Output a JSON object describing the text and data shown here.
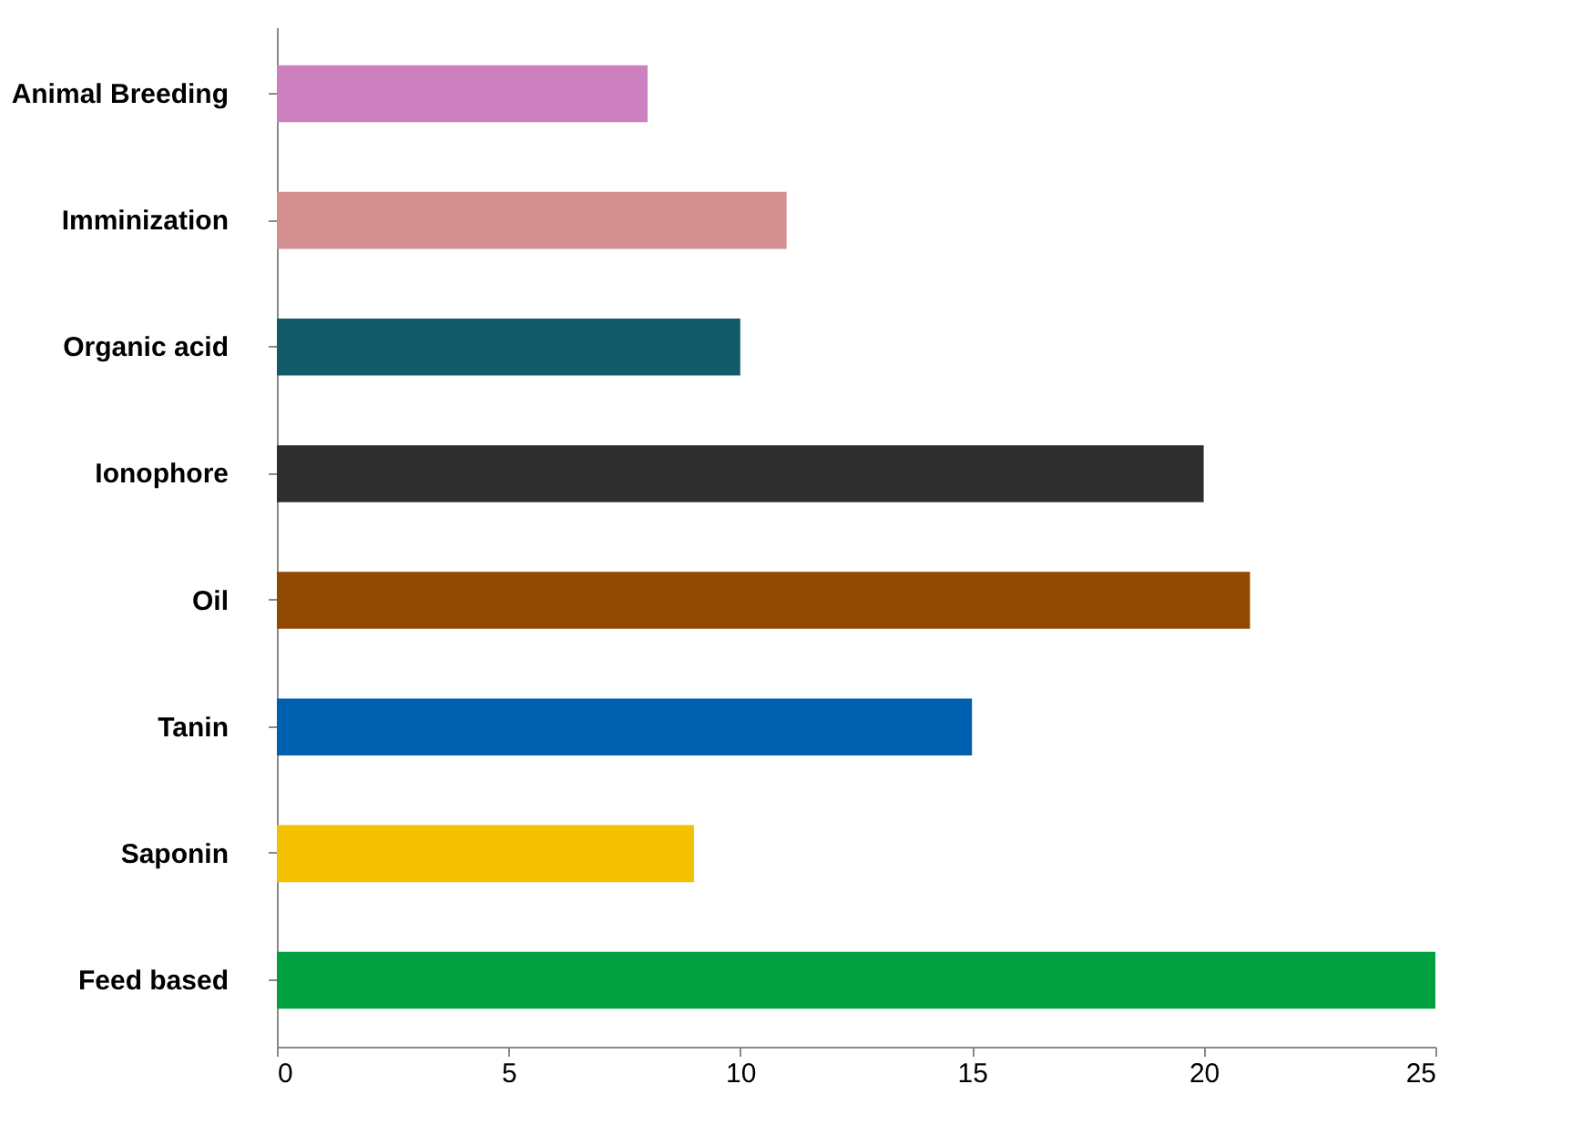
{
  "chart_data": {
    "type": "bar",
    "orientation": "horizontal",
    "categories": [
      "Animal Breeding",
      "Imminization",
      "Organic acid",
      "Ionophore",
      "Oil",
      "Tanin",
      "Saponin",
      "Feed based"
    ],
    "values": [
      8,
      11,
      10,
      20,
      21,
      15,
      9,
      25
    ],
    "colors": [
      "#cc80c0",
      "#d49090",
      "#115a6a",
      "#2e2e2e",
      "#914800",
      "#0060b0",
      "#f5c000",
      "#00a040"
    ],
    "xlim": [
      0,
      25
    ],
    "xticks": [
      0,
      5,
      10,
      15,
      20,
      25
    ],
    "grid": false
  }
}
